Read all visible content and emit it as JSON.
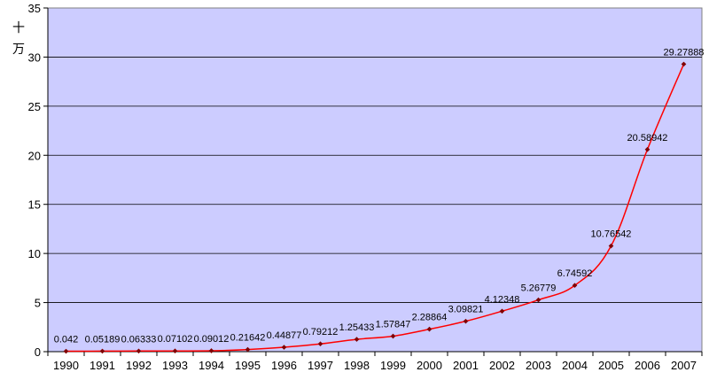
{
  "chart_data": {
    "type": "line",
    "title": "",
    "xlabel": "",
    "ylabel": "十万",
    "categories": [
      "1990",
      "1991",
      "1992",
      "1993",
      "1994",
      "1995",
      "1996",
      "1997",
      "1998",
      "1999",
      "2000",
      "2001",
      "2002",
      "2003",
      "2004",
      "2005",
      "2006",
      "2007"
    ],
    "series": [
      {
        "values": [
          0.042,
          0.05189,
          0.06333,
          0.07102,
          0.09012,
          0.21642,
          0.44877,
          0.79212,
          1.25433,
          1.57847,
          2.28864,
          3.09821,
          4.12348,
          5.26779,
          6.74592,
          10.76542,
          20.58942,
          29.27888
        ],
        "labels": [
          "0.042",
          "0.05189",
          "0.06333",
          "0.07102",
          "0.09012",
          "0.21642",
          "0.44877",
          "0.79212",
          "1.25433",
          "1.57847",
          "2.28864",
          "3.09821",
          "4.12348",
          "5.26779",
          "6.74592",
          "10.76542",
          "20.58942",
          "29.27888"
        ],
        "color": "#ff0000",
        "marker_color": "#800000"
      }
    ],
    "ylim": [
      0,
      35
    ],
    "yticks": [
      "0",
      "5",
      "10",
      "15",
      "20",
      "25",
      "30",
      "35"
    ],
    "grid": true,
    "legend": "none",
    "plot_background": "#ccccff"
  }
}
